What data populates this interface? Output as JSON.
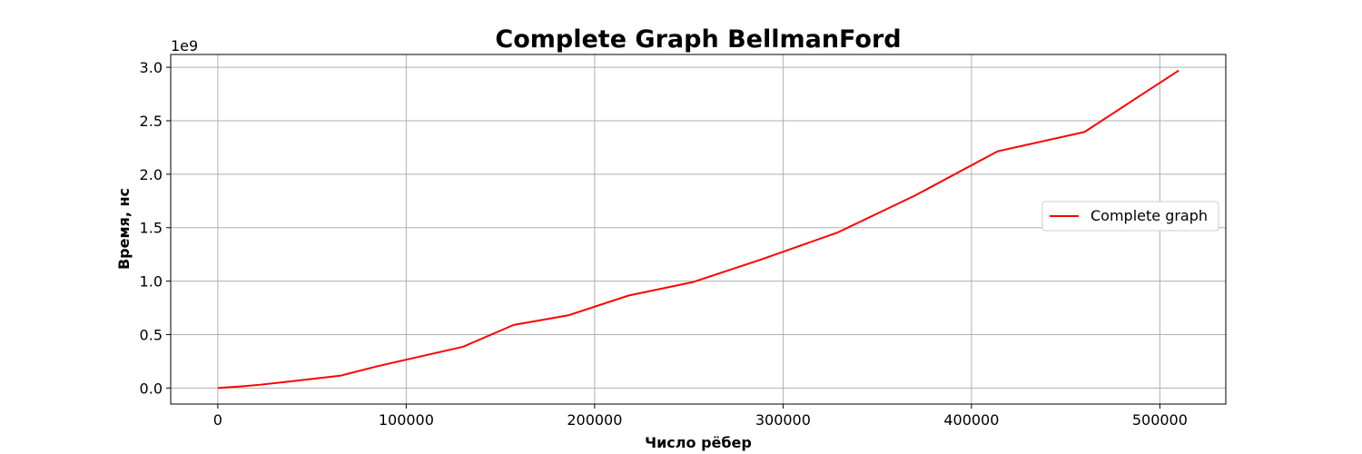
{
  "chart_data": {
    "type": "line",
    "title": "Complete Graph BellmanFord",
    "xlabel": "Число рёбер",
    "ylabel": "Время, нс",
    "y_offset_label": "1e9",
    "y_scale_exponent": 9,
    "xlim": [
      -25000,
      535000
    ],
    "ylim": [
      -0.15,
      3.12
    ],
    "x_ticks": [
      0,
      100000,
      200000,
      300000,
      400000,
      500000
    ],
    "x_tick_labels": [
      "0",
      "100000",
      "200000",
      "300000",
      "400000",
      "500000"
    ],
    "y_ticks": [
      0.0,
      0.5,
      1.0,
      1.5,
      2.0,
      2.5,
      3.0
    ],
    "y_tick_labels": [
      "0.0",
      "0.5",
      "1.0",
      "1.5",
      "2.0",
      "2.5",
      "3.0"
    ],
    "grid": true,
    "legend_position": "center-right",
    "series": [
      {
        "name": "Complete graph",
        "color": "#ff0000",
        "x": [
          0,
          12000,
          22000,
          35000,
          65000,
          85000,
          130000,
          157000,
          186000,
          218000,
          252000,
          288000,
          329000,
          370000,
          414000,
          460000,
          510000
        ],
        "y": [
          0.0,
          0.015,
          0.03,
          0.055,
          0.115,
          0.205,
          0.385,
          0.59,
          0.68,
          0.865,
          0.99,
          1.2,
          1.455,
          1.8,
          2.215,
          2.395,
          2.97
        ]
      }
    ]
  }
}
